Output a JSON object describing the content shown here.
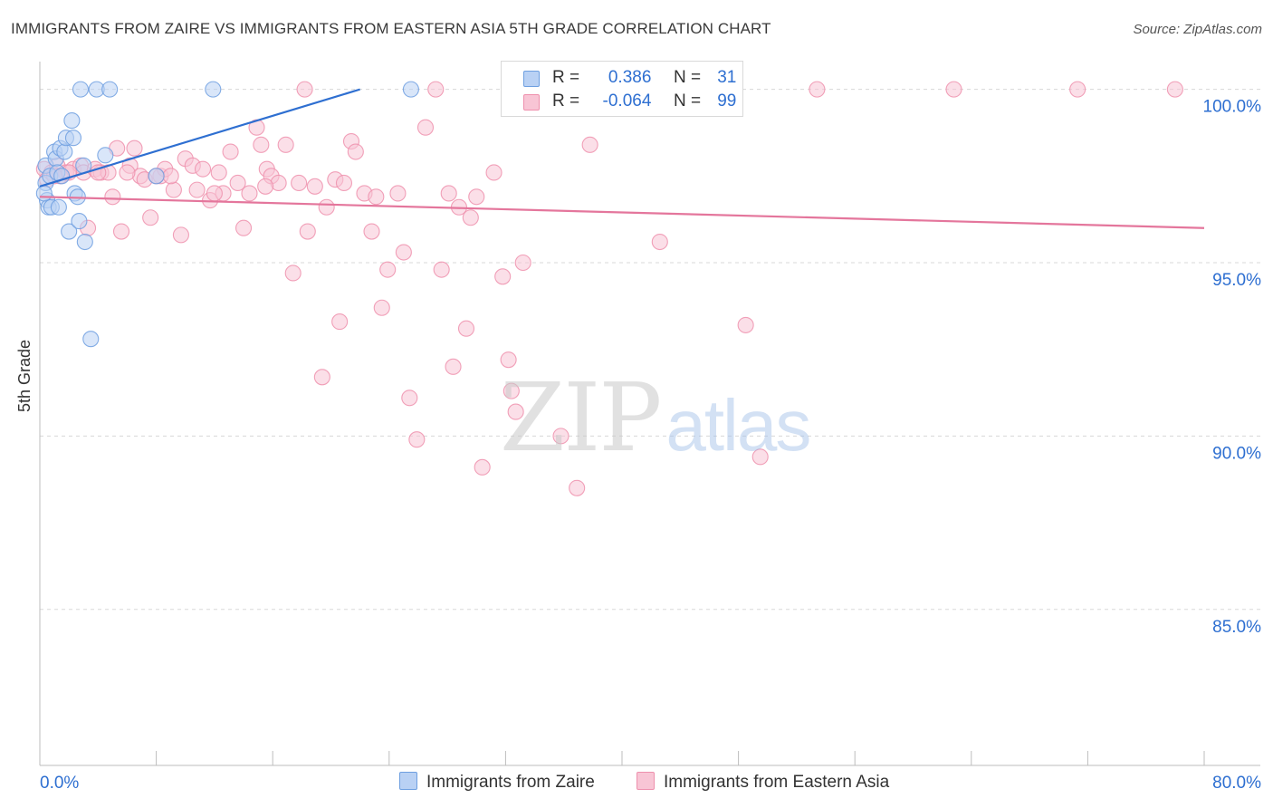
{
  "title": "IMMIGRANTS FROM ZAIRE VS IMMIGRANTS FROM EASTERN ASIA 5TH GRADE CORRELATION CHART",
  "source": "Source: ZipAtlas.com",
  "watermark": {
    "zip": "ZIP",
    "atlas": "atlas"
  },
  "legend": {
    "r_label": "R =",
    "n_label": "N =",
    "rows": [
      {
        "r": "0.386",
        "n": "31"
      },
      {
        "r": "-0.064",
        "n": "99"
      }
    ]
  },
  "chart_data": {
    "type": "scatter",
    "title": "IMMIGRANTS FROM ZAIRE VS IMMIGRANTS FROM EASTERN ASIA 5TH GRADE CORRELATION CHART",
    "xlabel": "",
    "ylabel": "5th Grade",
    "xlim": [
      0,
      80
    ],
    "ylim": [
      80.5,
      100.8
    ],
    "x_tick_labels": [
      "0.0%",
      "80.0%"
    ],
    "y_ticks": [
      85,
      90,
      95,
      100
    ],
    "y_tick_labels": [
      "85.0%",
      "90.0%",
      "95.0%",
      "100.0%"
    ],
    "colors": {
      "blue": "#6e9fe0",
      "blue_fill": "#b9d1f4",
      "blue_line": "#2e6fd1",
      "pink": "#ee90ad",
      "pink_fill": "#f8c5d5",
      "pink_line": "#e4769c",
      "axis_label": "#2e6fd1"
    },
    "series": [
      {
        "name": "Immigrants from Zaire",
        "color": "blue",
        "r": 0.386,
        "n": 31,
        "trend": {
          "x": [
            0.0,
            22.0
          ],
          "y": [
            97.2,
            100.0
          ]
        },
        "points": [
          [
            0.4,
            97.8
          ],
          [
            0.4,
            97.3
          ],
          [
            0.5,
            96.8
          ],
          [
            0.6,
            96.6
          ],
          [
            0.7,
            97.5
          ],
          [
            0.8,
            96.6
          ],
          [
            1.0,
            98.2
          ],
          [
            1.1,
            98.0
          ],
          [
            1.2,
            97.6
          ],
          [
            1.3,
            96.6
          ],
          [
            1.4,
            98.3
          ],
          [
            1.5,
            97.5
          ],
          [
            1.7,
            98.2
          ],
          [
            1.8,
            98.6
          ],
          [
            2.0,
            95.9
          ],
          [
            2.2,
            99.1
          ],
          [
            2.3,
            98.6
          ],
          [
            2.4,
            97.0
          ],
          [
            2.6,
            96.9
          ],
          [
            2.7,
            96.2
          ],
          [
            2.8,
            100.0
          ],
          [
            3.0,
            97.8
          ],
          [
            3.1,
            95.6
          ],
          [
            3.5,
            92.8
          ],
          [
            3.9,
            100.0
          ],
          [
            4.5,
            98.1
          ],
          [
            4.8,
            100.0
          ],
          [
            8.0,
            97.5
          ],
          [
            11.9,
            100.0
          ],
          [
            25.5,
            100.0
          ],
          [
            0.3,
            97.0
          ]
        ]
      },
      {
        "name": "Immigrants from Eastern Asia",
        "color": "pink",
        "r": -0.064,
        "n": 99,
        "trend": {
          "x": [
            0.0,
            80.0
          ],
          "y": [
            96.9,
            96.0
          ]
        },
        "points": [
          [
            0.3,
            97.7
          ],
          [
            0.5,
            97.4
          ],
          [
            0.8,
            97.6
          ],
          [
            1.2,
            97.8
          ],
          [
            1.4,
            97.5
          ],
          [
            1.8,
            97.6
          ],
          [
            2.3,
            97.7
          ],
          [
            2.8,
            97.8
          ],
          [
            3.0,
            97.6
          ],
          [
            3.3,
            96.0
          ],
          [
            3.8,
            97.7
          ],
          [
            4.2,
            97.6
          ],
          [
            4.7,
            97.6
          ],
          [
            5.0,
            96.9
          ],
          [
            5.3,
            98.3
          ],
          [
            5.6,
            95.9
          ],
          [
            6.2,
            97.8
          ],
          [
            6.5,
            98.3
          ],
          [
            6.9,
            97.5
          ],
          [
            7.2,
            97.4
          ],
          [
            7.6,
            96.3
          ],
          [
            8.3,
            97.5
          ],
          [
            8.6,
            97.7
          ],
          [
            9.2,
            97.1
          ],
          [
            9.7,
            95.8
          ],
          [
            10.0,
            98.0
          ],
          [
            10.5,
            97.8
          ],
          [
            10.8,
            97.1
          ],
          [
            11.2,
            97.7
          ],
          [
            11.7,
            96.8
          ],
          [
            12.3,
            97.6
          ],
          [
            12.6,
            97.0
          ],
          [
            13.1,
            98.2
          ],
          [
            13.6,
            97.3
          ],
          [
            14.0,
            96.0
          ],
          [
            14.4,
            97.0
          ],
          [
            14.9,
            98.9
          ],
          [
            15.2,
            98.4
          ],
          [
            15.6,
            97.7
          ],
          [
            15.9,
            97.5
          ],
          [
            16.4,
            97.3
          ],
          [
            16.9,
            98.4
          ],
          [
            17.4,
            94.7
          ],
          [
            17.8,
            97.3
          ],
          [
            18.4,
            95.9
          ],
          [
            18.9,
            97.2
          ],
          [
            19.4,
            91.7
          ],
          [
            19.7,
            96.6
          ],
          [
            20.3,
            97.4
          ],
          [
            20.6,
            93.3
          ],
          [
            20.9,
            97.3
          ],
          [
            21.4,
            98.5
          ],
          [
            21.7,
            98.2
          ],
          [
            22.3,
            97.0
          ],
          [
            22.8,
            95.9
          ],
          [
            23.1,
            96.9
          ],
          [
            23.5,
            93.7
          ],
          [
            23.9,
            94.8
          ],
          [
            24.6,
            97.0
          ],
          [
            25.0,
            95.3
          ],
          [
            25.4,
            91.1
          ],
          [
            25.9,
            89.9
          ],
          [
            26.5,
            98.9
          ],
          [
            27.2,
            100.0
          ],
          [
            27.6,
            94.8
          ],
          [
            28.1,
            97.0
          ],
          [
            28.4,
            92.0
          ],
          [
            28.8,
            96.6
          ],
          [
            29.3,
            93.1
          ],
          [
            29.6,
            96.3
          ],
          [
            30.0,
            96.9
          ],
          [
            30.4,
            89.1
          ],
          [
            31.2,
            97.6
          ],
          [
            31.8,
            94.6
          ],
          [
            32.2,
            92.2
          ],
          [
            32.4,
            91.3
          ],
          [
            32.7,
            90.7
          ],
          [
            33.2,
            95.0
          ],
          [
            35.8,
            90.0
          ],
          [
            36.9,
            88.5
          ],
          [
            37.8,
            98.4
          ],
          [
            37.2,
            100.0
          ],
          [
            42.6,
            95.6
          ],
          [
            43.4,
            100.0
          ],
          [
            48.5,
            93.2
          ],
          [
            49.5,
            89.4
          ],
          [
            53.4,
            100.0
          ],
          [
            62.8,
            100.0
          ],
          [
            71.3,
            100.0
          ],
          [
            78.0,
            100.0
          ],
          [
            18.2,
            100.0
          ],
          [
            2.0,
            97.6
          ],
          [
            6.0,
            97.6
          ],
          [
            9.0,
            97.5
          ],
          [
            12.0,
            97.0
          ],
          [
            15.5,
            97.2
          ],
          [
            1.0,
            97.5
          ],
          [
            4.0,
            97.6
          ],
          [
            8.0,
            97.5
          ]
        ]
      }
    ],
    "legend_entries": [
      "Immigrants from Zaire",
      "Immigrants from Eastern Asia"
    ],
    "grid": true
  }
}
